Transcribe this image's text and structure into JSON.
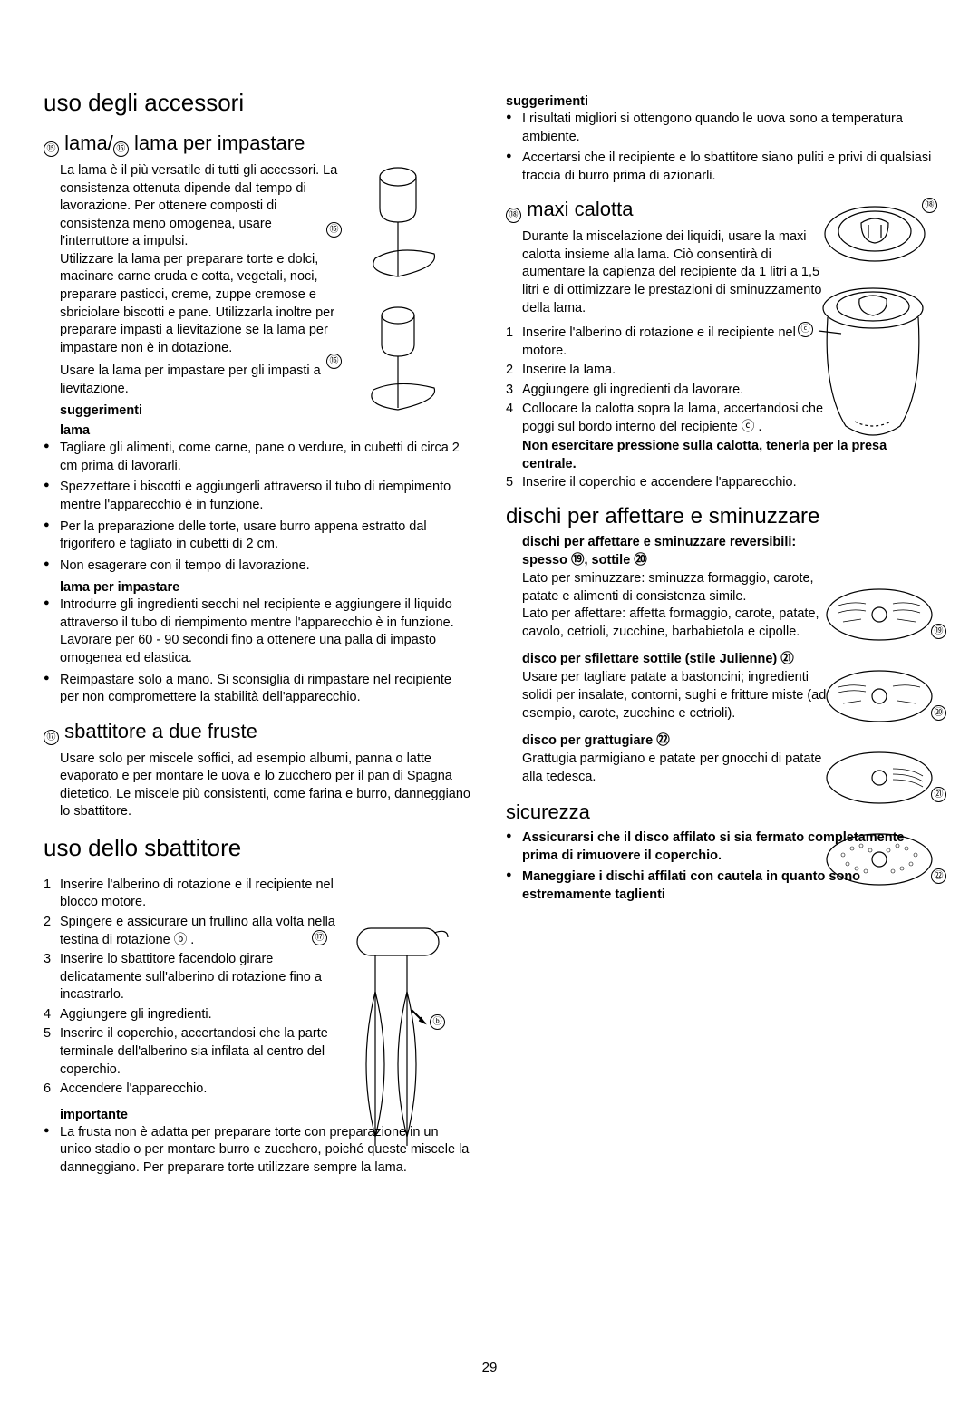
{
  "page_number": "29",
  "refs": {
    "r15": "⑮",
    "r16": "⑯",
    "r17": "⑰",
    "r18": "⑱",
    "r19": "⑲",
    "r20": "⑳",
    "r21": "㉑",
    "r22": "㉒",
    "rb": "ⓑ",
    "rc": "ⓒ"
  },
  "left": {
    "h1": "uso degli accessori",
    "h2_blade": " lama/ lama per impastare",
    "blade_p1": "La lama è il più versatile di tutti gli accessori. La consistenza ottenuta dipende dal tempo di lavorazione. Per ottenere composti di consistenza meno omogenea, usare l'interruttore a impulsi.",
    "blade_p2": "Utilizzare la lama per preparare torte e dolci, macinare carne cruda e cotta, vegetali, noci, preparare pasticci, creme, zuppe cremose e sbriciolare biscotti e pane. Utilizzarla inoltre per preparare impasti a lievitazione se la lama per impastare non è in dotazione.",
    "blade_p3": "Usare la lama per impastare per gli impasti a lievitazione.",
    "h3_sugg": "suggerimenti",
    "h3_lama": "lama",
    "tips_lama": [
      "Tagliare gli alimenti, come carne, pane o verdure, in cubetti di circa 2 cm prima di lavorarli.",
      "Spezzettare i biscotti e aggiungerli attraverso il tubo di riempimento mentre l'apparecchio è in funzione.",
      "Per la preparazione delle torte, usare burro appena estratto dal frigorifero e tagliato in cubetti di 2 cm.",
      "Non esagerare con il tempo di lavorazione."
    ],
    "h3_lama_imp": "lama per impastare",
    "tips_imp": [
      "Introdurre gli ingredienti secchi nel recipiente e aggiungere il liquido attraverso il tubo di riempimento mentre l'apparecchio è in funzione. Lavorare per 60 - 90 secondi fino a ottenere una palla di impasto omogenea ed elastica.",
      "Reimpastare solo a mano. Si sconsiglia di rimpastare nel recipiente per non compromettere la stabilità dell'apparecchio."
    ],
    "h2_whisk": " sbattitore a due fruste",
    "whisk_p": "Usare solo per miscele soffici, ad esempio albumi, panna o latte evaporato e per montare le uova e lo zucchero per il pan di Spagna dietetico. Le miscele più consistenti, come farina e burro, danneggiano lo sbattitore.",
    "h1_whisk_use": "uso dello sbattitore",
    "whisk_steps": [
      "Inserire l'alberino di rotazione e il recipiente nel blocco motore.",
      "Spingere e assicurare un frullino alla volta nella testina di rotazione ⓑ .",
      "Inserire lo sbattitore facendolo girare delicatamente sull'alberino di rotazione fino a incastrarlo.",
      "Aggiungere gli ingredienti.",
      "Inserire il coperchio, accertandosi che la parte terminale dell'alberino sia infilata al centro del coperchio.",
      "Accendere l'apparecchio."
    ],
    "h3_imp": "importante",
    "importante_li": "La frusta non è adatta per preparare torte con preparazione in un unico stadio o per montare burro e zucchero, poiché queste miscele la danneggiano. Per preparare torte utilizzare sempre la lama."
  },
  "right": {
    "h3_sugg": "suggerimenti",
    "sugg_tips": [
      "I risultati migliori si ottengono quando le uova sono a temperatura ambiente.",
      "Accertarsi che il recipiente e lo sbattitore siano puliti e privi di qualsiasi traccia di burro prima di azionarli."
    ],
    "h2_maxi": " maxi calotta",
    "maxi_p": "Durante la miscelazione dei liquidi, usare la maxi calotta insieme alla lama. Ciò consentirà di aumentare la capienza del recipiente da 1 litri a 1,5 litri e di ottimizzare le prestazioni di sminuzzamento della lama.",
    "maxi_steps": [
      "Inserire l'alberino di rotazione e il recipiente nel motore.",
      "Inserire la lama.",
      "Aggiungere gli ingredienti da lavorare.",
      "Collocare la calotta sopra la lama, accertandosi che poggi sul bordo interno del recipiente ⓒ ."
    ],
    "maxi_bold": "Non esercitare pressione sulla calotta, tenerla per la presa centrale.",
    "maxi_step5": "Inserire il coperchio e accendere l'apparecchio.",
    "h2_dischi": "dischi per affettare e sminuzzare",
    "h3_dischi1": "dischi per affettare e sminuzzare reversibili: spesso ⑲, sottile ⑳",
    "dischi_p1": "Lato per sminuzzare: sminuzza formaggio, carote, patate e alimenti di consistenza simile.",
    "dischi_p2": "Lato per affettare: affetta formaggio, carote, patate, cavolo, cetrioli, zucchine, barbabietola e cipolle.",
    "h3_julienne": "disco per sfilettare sottile (stile Julienne)  ㉑",
    "julienne_p": "Usare per tagliare patate a bastoncini; ingredienti solidi per insalate, contorni, sughi e fritture miste (ad esempio, carote, zucchine e cetrioli).",
    "h3_gratt": "disco per grattugiare  ㉒",
    "gratt_p": "Grattugia parmigiano e patate per gnocchi di patate alla tedesca.",
    "h2_sic": "sicurezza",
    "sic_tips": [
      "Assicurarsi che il disco affilato si sia fermato completamente prima di rimuovere il coperchio.",
      "Maneggiare i dischi affilati con cautela in quanto sono estremamente taglienti"
    ]
  },
  "diagrams": {
    "stroke": "#000",
    "fill": "none",
    "stroke_width": 1.2
  }
}
